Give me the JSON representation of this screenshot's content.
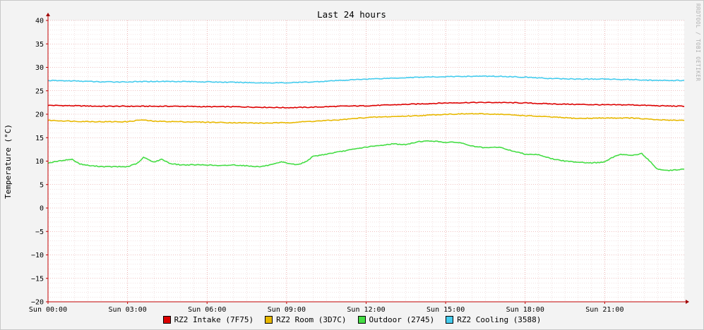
{
  "chart_data": {
    "type": "line",
    "title": "Last 24 hours",
    "ylabel": "Temperature (°C)",
    "watermark": "RRDTOOL / TOBI OETIKER",
    "ylim": [
      -20,
      40
    ],
    "y_ticks": [
      40,
      35,
      30,
      25,
      20,
      15,
      10,
      5,
      0,
      -5,
      -10,
      -15,
      -20
    ],
    "x_tick_labels": [
      "Sun 00:00",
      "Sun 03:00",
      "Sun 06:00",
      "Sun 09:00",
      "Sun 12:00",
      "Sun 15:00",
      "Sun 18:00",
      "Sun 21:00"
    ],
    "x_hours": [
      0,
      3,
      6,
      9,
      12,
      15,
      18,
      21
    ],
    "xlim_hours": [
      0,
      24
    ],
    "grid": true,
    "legend_position": "bottom",
    "series": [
      {
        "name": "RZ2 Intake (7F75)",
        "color": "#dd0000",
        "points": [
          [
            0,
            21.9
          ],
          [
            1,
            21.8
          ],
          [
            2,
            21.7
          ],
          [
            3,
            21.7
          ],
          [
            4,
            21.7
          ],
          [
            5,
            21.7
          ],
          [
            6,
            21.6
          ],
          [
            7,
            21.6
          ],
          [
            8,
            21.5
          ],
          [
            9,
            21.4
          ],
          [
            10,
            21.5
          ],
          [
            11,
            21.7
          ],
          [
            12,
            21.8
          ],
          [
            13,
            22.0
          ],
          [
            14,
            22.2
          ],
          [
            15,
            22.4
          ],
          [
            16,
            22.5
          ],
          [
            17,
            22.5
          ],
          [
            18,
            22.4
          ],
          [
            19,
            22.2
          ],
          [
            20,
            22.1
          ],
          [
            21,
            22.0
          ],
          [
            22,
            22.0
          ],
          [
            23,
            21.8
          ],
          [
            24,
            21.7
          ]
        ]
      },
      {
        "name": "RZ2 Room (3D7C)",
        "color": "#e8b800",
        "points": [
          [
            0,
            18.7
          ],
          [
            1,
            18.5
          ],
          [
            2,
            18.4
          ],
          [
            3,
            18.4
          ],
          [
            3.5,
            18.8
          ],
          [
            4,
            18.5
          ],
          [
            5,
            18.4
          ],
          [
            6,
            18.3
          ],
          [
            7,
            18.2
          ],
          [
            8,
            18.1
          ],
          [
            9,
            18.2
          ],
          [
            10,
            18.5
          ],
          [
            11,
            18.8
          ],
          [
            12,
            19.3
          ],
          [
            13,
            19.5
          ],
          [
            14,
            19.7
          ],
          [
            15,
            20.0
          ],
          [
            16,
            20.1
          ],
          [
            17,
            20.0
          ],
          [
            18,
            19.7
          ],
          [
            19,
            19.4
          ],
          [
            20,
            19.1
          ],
          [
            21,
            19.2
          ],
          [
            22,
            19.2
          ],
          [
            23,
            18.8
          ],
          [
            24,
            18.7
          ]
        ]
      },
      {
        "name": "Outdoor (2745)",
        "color": "#44dd44",
        "points": [
          [
            0,
            9.6
          ],
          [
            0.6,
            10.2
          ],
          [
            0.9,
            10.4
          ],
          [
            1.2,
            9.4
          ],
          [
            1.6,
            9.0
          ],
          [
            2.2,
            8.8
          ],
          [
            3.0,
            8.8
          ],
          [
            3.4,
            9.6
          ],
          [
            3.6,
            10.8
          ],
          [
            3.8,
            10.3
          ],
          [
            4.0,
            9.8
          ],
          [
            4.3,
            10.4
          ],
          [
            4.6,
            9.5
          ],
          [
            5.0,
            9.2
          ],
          [
            6.0,
            9.2
          ],
          [
            6.5,
            9.0
          ],
          [
            7.0,
            9.2
          ],
          [
            7.5,
            9.0
          ],
          [
            8.0,
            8.8
          ],
          [
            8.5,
            9.3
          ],
          [
            8.8,
            9.8
          ],
          [
            9.1,
            9.5
          ],
          [
            9.4,
            9.2
          ],
          [
            9.7,
            9.8
          ],
          [
            10.0,
            11.0
          ],
          [
            10.5,
            11.5
          ],
          [
            11.0,
            12.0
          ],
          [
            11.5,
            12.5
          ],
          [
            12.0,
            13.0
          ],
          [
            12.5,
            13.3
          ],
          [
            13.0,
            13.7
          ],
          [
            13.5,
            13.5
          ],
          [
            14.0,
            14.2
          ],
          [
            14.5,
            14.3
          ],
          [
            15.0,
            14.0
          ],
          [
            15.5,
            14.0
          ],
          [
            16.0,
            13.2
          ],
          [
            16.5,
            12.8
          ],
          [
            17.0,
            13.0
          ],
          [
            17.5,
            12.2
          ],
          [
            18.0,
            11.5
          ],
          [
            18.5,
            11.4
          ],
          [
            19.0,
            10.5
          ],
          [
            19.5,
            10.0
          ],
          [
            20.0,
            9.8
          ],
          [
            20.5,
            9.6
          ],
          [
            21.0,
            9.8
          ],
          [
            21.3,
            10.8
          ],
          [
            21.6,
            11.5
          ],
          [
            22.0,
            11.2
          ],
          [
            22.4,
            11.6
          ],
          [
            22.7,
            10.0
          ],
          [
            23.0,
            8.2
          ],
          [
            23.4,
            8.0
          ],
          [
            24.0,
            8.3
          ]
        ]
      },
      {
        "name": "RZ2 Cooling (3588)",
        "color": "#44ccee",
        "points": [
          [
            0,
            27.2
          ],
          [
            1,
            27.1
          ],
          [
            2,
            26.9
          ],
          [
            3,
            26.9
          ],
          [
            4,
            27.0
          ],
          [
            5,
            27.0
          ],
          [
            6,
            26.9
          ],
          [
            7,
            26.8
          ],
          [
            8,
            26.7
          ],
          [
            9,
            26.7
          ],
          [
            10,
            26.9
          ],
          [
            11,
            27.2
          ],
          [
            12,
            27.5
          ],
          [
            13,
            27.7
          ],
          [
            14,
            27.9
          ],
          [
            15,
            28.0
          ],
          [
            16,
            28.1
          ],
          [
            17,
            28.1
          ],
          [
            18,
            27.9
          ],
          [
            19,
            27.6
          ],
          [
            20,
            27.5
          ],
          [
            21,
            27.5
          ],
          [
            22,
            27.4
          ],
          [
            23,
            27.2
          ],
          [
            24,
            27.2
          ]
        ]
      }
    ]
  }
}
